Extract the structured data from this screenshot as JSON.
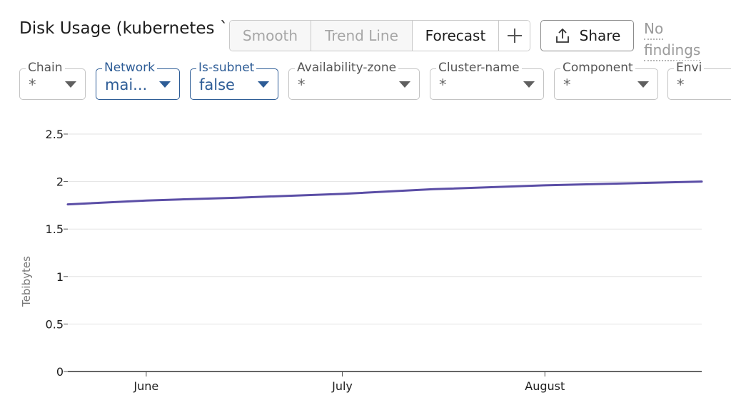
{
  "header": {
    "title": "Disk Usage (kubernetes `u",
    "toggles": [
      {
        "label": "Smooth",
        "active": false
      },
      {
        "label": "Trend Line",
        "active": false
      },
      {
        "label": "Forecast",
        "active": true
      }
    ],
    "add_icon": "plus-icon",
    "share": {
      "label": "Share",
      "icon": "share-icon"
    },
    "findings_line1": "No",
    "findings_line2": "findings"
  },
  "filters": [
    {
      "label": "Chain",
      "value": "*",
      "selected": false
    },
    {
      "label": "Network",
      "value": "mai...",
      "selected": true
    },
    {
      "label": "Is-subnet",
      "value": "false",
      "selected": true
    },
    {
      "label": "Availability-zone",
      "value": "*",
      "selected": false
    },
    {
      "label": "Cluster-name",
      "value": "*",
      "selected": false
    },
    {
      "label": "Component",
      "value": "*",
      "selected": false
    },
    {
      "label": "Envi",
      "value": "*",
      "selected": false
    }
  ],
  "chart_data": {
    "type": "line",
    "ylabel": "Tebibytes",
    "xlabel": "",
    "ylim": [
      0,
      2.5
    ],
    "yticks": [
      0,
      0.5,
      1,
      1.5,
      2,
      2.5
    ],
    "ytick_labels": [
      "0",
      "0.5",
      "1",
      "1.5",
      "2",
      "2.5"
    ],
    "xlim": [
      "2023-05-20",
      "2023-08-25"
    ],
    "xticks": [
      "2023-06-01",
      "2023-07-01",
      "2023-08-01"
    ],
    "xtick_labels": [
      "June",
      "July",
      "August"
    ],
    "grid": true,
    "series": [
      {
        "color": "#5b4ea6",
        "x": [
          "2023-05-20",
          "2023-06-01",
          "2023-06-15",
          "2023-07-01",
          "2023-07-15",
          "2023-08-01",
          "2023-08-25"
        ],
        "y": [
          1.76,
          1.8,
          1.83,
          1.87,
          1.92,
          1.96,
          2.0
        ]
      }
    ]
  }
}
